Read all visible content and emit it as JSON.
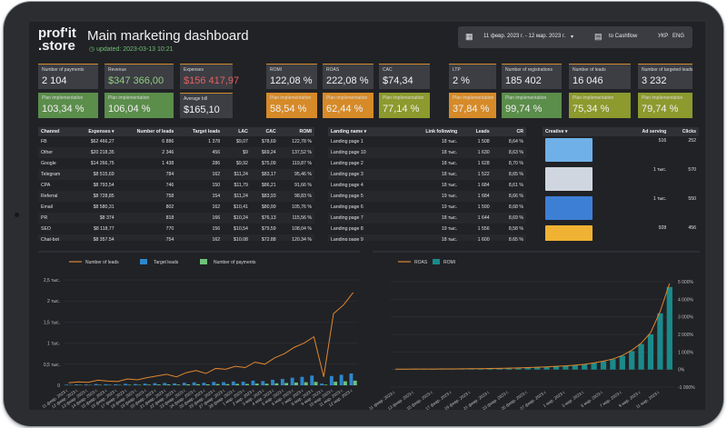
{
  "header": {
    "logo_top": "prof'it",
    "logo_bottom": ".store",
    "title": "Main marketing dashboard",
    "updated": "updated: 2023-03-13 10:21",
    "date_range": "11 февр. 2023 г. - 12 мар. 2023 г.",
    "cashflow_label": "to Cashflow",
    "lang_ukr": "УКР",
    "lang_eng": "ENG"
  },
  "kpis": [
    {
      "label": "Number of payments",
      "value": "2 104",
      "style": ""
    },
    {
      "label": "Revenue",
      "value": "$347 366,00",
      "style": "pos"
    },
    {
      "label": "Expenses",
      "value": "$156 417,97",
      "style": "red"
    },
    {
      "label": "ROMI",
      "value": "122,08 %",
      "style": ""
    },
    {
      "label": "ROAS",
      "value": "222,08 %",
      "style": ""
    },
    {
      "label": "CAC",
      "value": "$74,34",
      "style": ""
    },
    {
      "label": "LTP",
      "value": "2 %",
      "style": ""
    },
    {
      "label": "Number of registrations",
      "value": "185 402",
      "style": ""
    },
    {
      "label": "Number of leads",
      "value": "16 046",
      "style": ""
    },
    {
      "label": "Number of targeted leads",
      "value": "3 232",
      "style": ""
    }
  ],
  "kpis2": [
    {
      "label": "Plan implementation",
      "value": "103,34 %",
      "style": "green"
    },
    {
      "label": "Plan implementation",
      "value": "106,04 %",
      "style": "green"
    },
    {
      "label": "Average bill",
      "value": "$165,10",
      "style": ""
    },
    {
      "label": "Plan implementation",
      "value": "58,54 %",
      "style": "orange"
    },
    {
      "label": "Plan implementation",
      "value": "62,44 %",
      "style": "orange"
    },
    {
      "label": "Plan implementation",
      "value": "77,14 %",
      "style": "olive"
    },
    {
      "label": "Plan implementation",
      "value": "37,84 %",
      "style": "orange"
    },
    {
      "label": "Plan implementation",
      "value": "99,74 %",
      "style": "green"
    },
    {
      "label": "Plan implementation",
      "value": "75,34 %",
      "style": "olive"
    },
    {
      "label": "Plan implementation",
      "value": "79,74 %",
      "style": "olive"
    }
  ],
  "channels": {
    "headers": [
      "Channel",
      "Expenses ▾",
      "Number of leads",
      "Target leads",
      "LAC",
      "CAC",
      "ROMI"
    ],
    "rows": [
      [
        "FB",
        "$62 466,27",
        "6 886",
        "1 378",
        "$9,07",
        "$78,69",
        "122,78 %"
      ],
      [
        "Other",
        "$20 218,35",
        "2 346",
        "456",
        "$9",
        "$69,24",
        "137,52 %"
      ],
      [
        "Google",
        "$14 266,75",
        "1 438",
        "286",
        "$9,92",
        "$75,09",
        "119,87 %"
      ],
      [
        "Telegram",
        "$8 515,69",
        "784",
        "162",
        "$11,24",
        "$83,17",
        "95,46 %"
      ],
      [
        "CPA",
        "$8 793,54",
        "746",
        "150",
        "$11,79",
        "$86,21",
        "91,66 %"
      ],
      [
        "Referral",
        "$8 728,85",
        "758",
        "154",
        "$11,24",
        "$83,93",
        "98,83 %"
      ],
      [
        "Email",
        "$8 580,31",
        "802",
        "162",
        "$10,41",
        "$80,99",
        "105,76 %"
      ],
      [
        "PR",
        "$8 374",
        "818",
        "166",
        "$10,24",
        "$76,13",
        "115,56 %"
      ],
      [
        "SEO",
        "$8 118,77",
        "770",
        "156",
        "$10,54",
        "$79,59",
        "108,04 %"
      ],
      [
        "Chat-bot",
        "$8 357,54",
        "754",
        "162",
        "$10,08",
        "$72,88",
        "120,34 %"
      ]
    ]
  },
  "landings": {
    "headers": [
      "Landing name ▾",
      "Link following",
      "Leads",
      "CR"
    ],
    "rows": [
      [
        "Landing page 1",
        "18 тыс.",
        "1 508",
        "8,64 %"
      ],
      [
        "Landing page 10",
        "18 тыс.",
        "1 630",
        "8,63 %"
      ],
      [
        "Landing page 2",
        "18 тыс.",
        "1 628",
        "8,70 %"
      ],
      [
        "Landing page 3",
        "18 тыс.",
        "1 522",
        "8,65 %"
      ],
      [
        "Landing page 4",
        "18 тыс.",
        "1 684",
        "8,61 %"
      ],
      [
        "Landing page 5",
        "19 тыс.",
        "1 684",
        "8,66 %"
      ],
      [
        "Landing page 6",
        "19 тыс.",
        "1 590",
        "8,68 %"
      ],
      [
        "Landing page 7",
        "18 тыс.",
        "1 644",
        "8,69 %"
      ],
      [
        "Landing page 8",
        "19 тыс.",
        "1 556",
        "8,58 %"
      ],
      [
        "Landing page 9",
        "18 тыс.",
        "1 600",
        "8,65 %"
      ]
    ]
  },
  "creatives": {
    "headers": [
      "Creative ▾",
      "Ad serving",
      "Clicks"
    ],
    "rows": [
      {
        "ad": "516",
        "clicks": "252",
        "color": "#6fb0e8"
      },
      {
        "ad": "1 тыс.",
        "clicks": "570",
        "color": "#cfd6e0"
      },
      {
        "ad": "1 тыс.",
        "clicks": "550",
        "color": "#3e7fd6"
      },
      {
        "ad": "928",
        "clicks": "456",
        "color": "#f0b232"
      }
    ]
  },
  "colors": {
    "leads": "#e0872e",
    "target": "#2e86c9",
    "payments": "#6fc27a",
    "roas": "#e0872e",
    "romi": "#1a8a8a"
  },
  "chart_data": [
    {
      "type": "line",
      "legend": [
        "Number of leads",
        "Target leads",
        "Number of payments"
      ],
      "y_ticks": [
        "0",
        "0,5 тыс.",
        "1 тыс.",
        "1,5 тыс.",
        "2 тыс.",
        "2,5 тыс."
      ],
      "ylim": [
        0,
        2500
      ],
      "x": [
        "11 февр. 2023 г.",
        "12 февр. 2023 г.",
        "13 февр. 2023 г.",
        "14 февр. 2023 г.",
        "15 февр. 2023 г.",
        "16 февр. 2023 г.",
        "17 февр. 2023 г.",
        "18 февр. 2023 г.",
        "19 февр. 2023 г.",
        "20 февр. 2023 г.",
        "21 февр. 2023 г.",
        "22 февр. 2023 г.",
        "23 февр. 2023 г.",
        "24 февр. 2023 г.",
        "25 февр. 2023 г.",
        "26 февр. 2023 г.",
        "27 февр. 2023 г.",
        "28 февр. 2023 г.",
        "1 мар. 2023 г.",
        "2 мар. 2023 г.",
        "3 мар. 2023 г.",
        "4 мар. 2023 г.",
        "5 мар. 2023 г.",
        "6 мар. 2023 г.",
        "7 мар. 2023 г.",
        "8 мар. 2023 г.",
        "9 мар. 2023 г.",
        "10 мар. 2023 г.",
        "11 мар. 2023 г.",
        "12 мар. 2023 г."
      ],
      "series": [
        {
          "name": "Number of leads",
          "values": [
            60,
            80,
            70,
            120,
            100,
            90,
            150,
            130,
            180,
            220,
            260,
            200,
            300,
            350,
            280,
            400,
            380,
            450,
            420,
            550,
            500,
            650,
            750,
            900,
            1000,
            1150,
            200,
            1700,
            1900,
            2200
          ]
        },
        {
          "name": "Target leads",
          "values": [
            15,
            20,
            18,
            30,
            25,
            22,
            35,
            30,
            40,
            50,
            55,
            45,
            60,
            70,
            60,
            80,
            75,
            90,
            85,
            110,
            100,
            130,
            150,
            180,
            200,
            230,
            40,
            220,
            250,
            280
          ]
        },
        {
          "name": "Number of payments",
          "values": [
            5,
            8,
            6,
            10,
            9,
            8,
            12,
            11,
            14,
            18,
            20,
            16,
            22,
            26,
            22,
            30,
            28,
            34,
            32,
            40,
            38,
            48,
            55,
            65,
            72,
            80,
            15,
            85,
            95,
            110
          ]
        }
      ]
    },
    {
      "type": "bar",
      "legend": [
        "ROAS",
        "ROMI"
      ],
      "y_ticks_right": [
        "-1 000%",
        "0%",
        "1 000%",
        "2 000%",
        "3 000%",
        "4 000%",
        "5 000%"
      ],
      "ylim": [
        -1000,
        5000
      ],
      "x": [
        "11 февр. 2023 г.",
        "12 февр. 2023 г.",
        "13 февр. 2023 г.",
        "14 февр. 2023 г.",
        "15 февр. 2023 г.",
        "16 февр. 2023 г.",
        "17 февр. 2023 г.",
        "18 февр. 2023 г.",
        "19 февр. 2023 г.",
        "20 февр. 2023 г.",
        "21 февр. 2023 г.",
        "22 февр. 2023 г.",
        "23 февр. 2023 г.",
        "24 февр. 2023 г.",
        "25 февр. 2023 г.",
        "26 февр. 2023 г.",
        "27 февр. 2023 г.",
        "28 февр. 2023 г.",
        "1 мар. 2023 г.",
        "2 мар. 2023 г.",
        "3 мар. 2023 г.",
        "4 мар. 2023 г.",
        "5 мар. 2023 г.",
        "6 мар. 2023 г.",
        "7 мар. 2023 г.",
        "8 мар. 2023 г.",
        "9 мар. 2023 г.",
        "10 мар. 2023 г.",
        "11 мар. 2023 г.",
        "12 мар. 2023 г."
      ],
      "series": [
        {
          "name": "ROAS",
          "values": [
            20,
            22,
            25,
            28,
            30,
            33,
            36,
            40,
            45,
            50,
            60,
            70,
            80,
            95,
            110,
            130,
            150,
            180,
            210,
            250,
            300,
            380,
            480,
            600,
            800,
            1100,
            1500,
            2100,
            3300,
            4900
          ]
        },
        {
          "name": "ROMI",
          "values": [
            10,
            12,
            14,
            16,
            18,
            20,
            24,
            28,
            32,
            38,
            45,
            55,
            65,
            80,
            95,
            115,
            135,
            165,
            195,
            240,
            290,
            370,
            470,
            590,
            780,
            1050,
            1450,
            2000,
            3200,
            4700
          ]
        }
      ]
    }
  ]
}
